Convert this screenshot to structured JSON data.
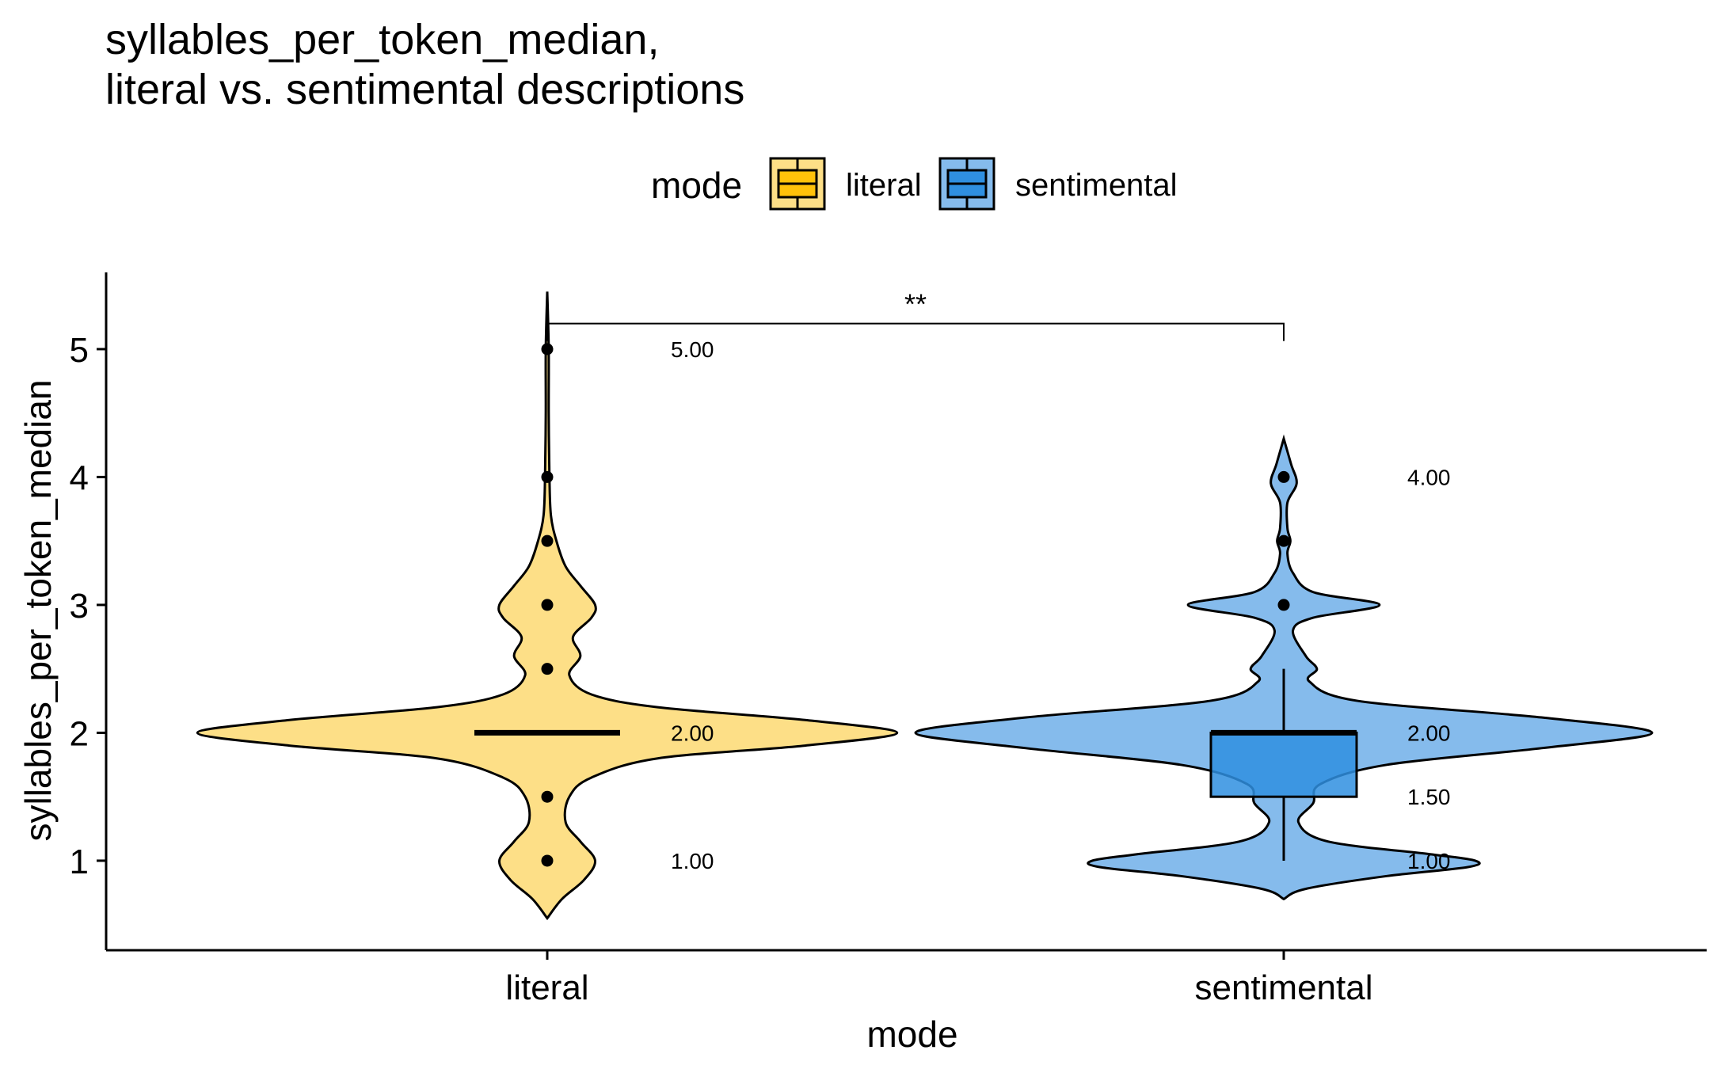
{
  "chart_data": {
    "type": "violin",
    "title_lines": [
      "syllables_per_token_median,",
      "literal vs. sentimental descriptions"
    ],
    "xlabel": "mode",
    "ylabel": "syllables_per_token_median",
    "ylim": [
      0.3,
      5.6
    ],
    "yticks": [
      "1",
      "2",
      "3",
      "4",
      "5"
    ],
    "categories": [
      "literal",
      "sentimental"
    ],
    "legend": {
      "title": "mode",
      "position": "top",
      "entries": [
        {
          "label": "literal",
          "color": "#FFC20A"
        },
        {
          "label": "sentimental",
          "color": "#0C7BDC"
        }
      ]
    },
    "groups": [
      {
        "name": "literal",
        "violin_color": "#FDDF87",
        "box_color": "#FFC20A",
        "box": {
          "q1": 2.0,
          "median": 2.0,
          "q3": 2.0,
          "whisker_low": 2.0,
          "whisker_high": 2.0
        },
        "violin_range": [
          0.55,
          5.45
        ],
        "density": [
          [
            0.55,
            0.0
          ],
          [
            0.7,
            0.04
          ],
          [
            0.85,
            0.1
          ],
          [
            1.0,
            0.13
          ],
          [
            1.15,
            0.09
          ],
          [
            1.3,
            0.05
          ],
          [
            1.5,
            0.06
          ],
          [
            1.65,
            0.12
          ],
          [
            1.8,
            0.3
          ],
          [
            1.9,
            0.7
          ],
          [
            2.0,
            0.95
          ],
          [
            2.1,
            0.7
          ],
          [
            2.2,
            0.3
          ],
          [
            2.3,
            0.12
          ],
          [
            2.45,
            0.06
          ],
          [
            2.6,
            0.09
          ],
          [
            2.75,
            0.07
          ],
          [
            2.9,
            0.12
          ],
          [
            3.0,
            0.13
          ],
          [
            3.15,
            0.09
          ],
          [
            3.3,
            0.05
          ],
          [
            3.5,
            0.025
          ],
          [
            3.7,
            0.01
          ],
          [
            4.0,
            0.006
          ],
          [
            4.5,
            0.004
          ],
          [
            5.0,
            0.004
          ],
          [
            5.45,
            0.0
          ]
        ],
        "outliers": [
          1.0,
          1.5,
          2.5,
          3.0,
          3.5,
          4.0,
          5.0
        ],
        "labels": [
          "5.00",
          "2.00",
          "1.00"
        ],
        "label_values": [
          5.0,
          2.0,
          1.0
        ]
      },
      {
        "name": "sentimental",
        "violin_color": "#85BBEC",
        "box_color": "#2F8FE0",
        "box": {
          "q1": 1.5,
          "median": 2.0,
          "q3": 2.0,
          "whisker_low": 1.0,
          "whisker_high": 2.5
        },
        "violin_range": [
          0.7,
          4.3
        ],
        "density": [
          [
            0.7,
            0.0
          ],
          [
            0.78,
            0.06
          ],
          [
            0.88,
            0.28
          ],
          [
            0.95,
            0.5
          ],
          [
            1.0,
            0.52
          ],
          [
            1.05,
            0.4
          ],
          [
            1.15,
            0.12
          ],
          [
            1.3,
            0.04
          ],
          [
            1.45,
            0.08
          ],
          [
            1.6,
            0.1
          ],
          [
            1.75,
            0.28
          ],
          [
            1.88,
            0.7
          ],
          [
            2.0,
            1.0
          ],
          [
            2.12,
            0.7
          ],
          [
            2.25,
            0.2
          ],
          [
            2.4,
            0.07
          ],
          [
            2.5,
            0.09
          ],
          [
            2.6,
            0.06
          ],
          [
            2.8,
            0.025
          ],
          [
            2.9,
            0.08
          ],
          [
            3.0,
            0.26
          ],
          [
            3.1,
            0.08
          ],
          [
            3.25,
            0.025
          ],
          [
            3.4,
            0.01
          ],
          [
            3.5,
            0.018
          ],
          [
            3.6,
            0.01
          ],
          [
            3.8,
            0.01
          ],
          [
            3.95,
            0.035
          ],
          [
            4.1,
            0.02
          ],
          [
            4.3,
            0.0
          ]
        ],
        "outliers": [
          3.0,
          3.5,
          4.0
        ],
        "labels": [
          "4.00",
          "2.00",
          "1.50",
          "1.00"
        ],
        "label_values": [
          4.0,
          2.0,
          1.5,
          1.0
        ]
      }
    ],
    "significance": {
      "label": "**",
      "from": "literal",
      "to": "sentimental",
      "y": 5.2
    }
  }
}
